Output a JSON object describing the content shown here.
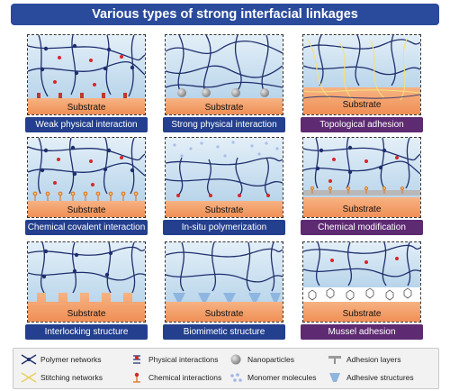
{
  "title": "Various types of strong interfacial linkages",
  "substrate_label": "Substrate",
  "panels": [
    {
      "caption": "Weak physical interaction"
    },
    {
      "caption": "Strong physical interaction"
    },
    {
      "caption": "Topological adhesion"
    },
    {
      "caption": "Chemical covalent interaction"
    },
    {
      "caption": "In-situ polymerization"
    },
    {
      "caption": "Chemical modification"
    },
    {
      "caption": "Interlocking structure"
    },
    {
      "caption": "Biomimetic structure"
    },
    {
      "caption": "Mussel adhesion"
    }
  ],
  "legend": [
    {
      "label": "Polymer networks",
      "icon": "polymer-network-icon"
    },
    {
      "label": "Physical interactions",
      "icon": "physical-interaction-icon"
    },
    {
      "label": "Nanoparticles",
      "icon": "nanoparticle-icon"
    },
    {
      "label": "Adhesion layers",
      "icon": "adhesion-layer-icon"
    },
    {
      "label": "Stitching networks",
      "icon": "stitching-network-icon"
    },
    {
      "label": "Chemical interactions",
      "icon": "chemical-interaction-icon"
    },
    {
      "label": "Monomer molecules",
      "icon": "monomer-molecule-icon"
    },
    {
      "label": "Adhesive structures",
      "icon": "adhesive-structure-icon"
    }
  ],
  "colors": {
    "title_bg": "#2a4a9c",
    "caption_blue": "#233f8e",
    "caption_purple": "#5e2a72",
    "substrate": "#f4a571",
    "hydrogel": "#cfe3f1",
    "network": "#1f2f6e",
    "marker": "#d8262a"
  }
}
